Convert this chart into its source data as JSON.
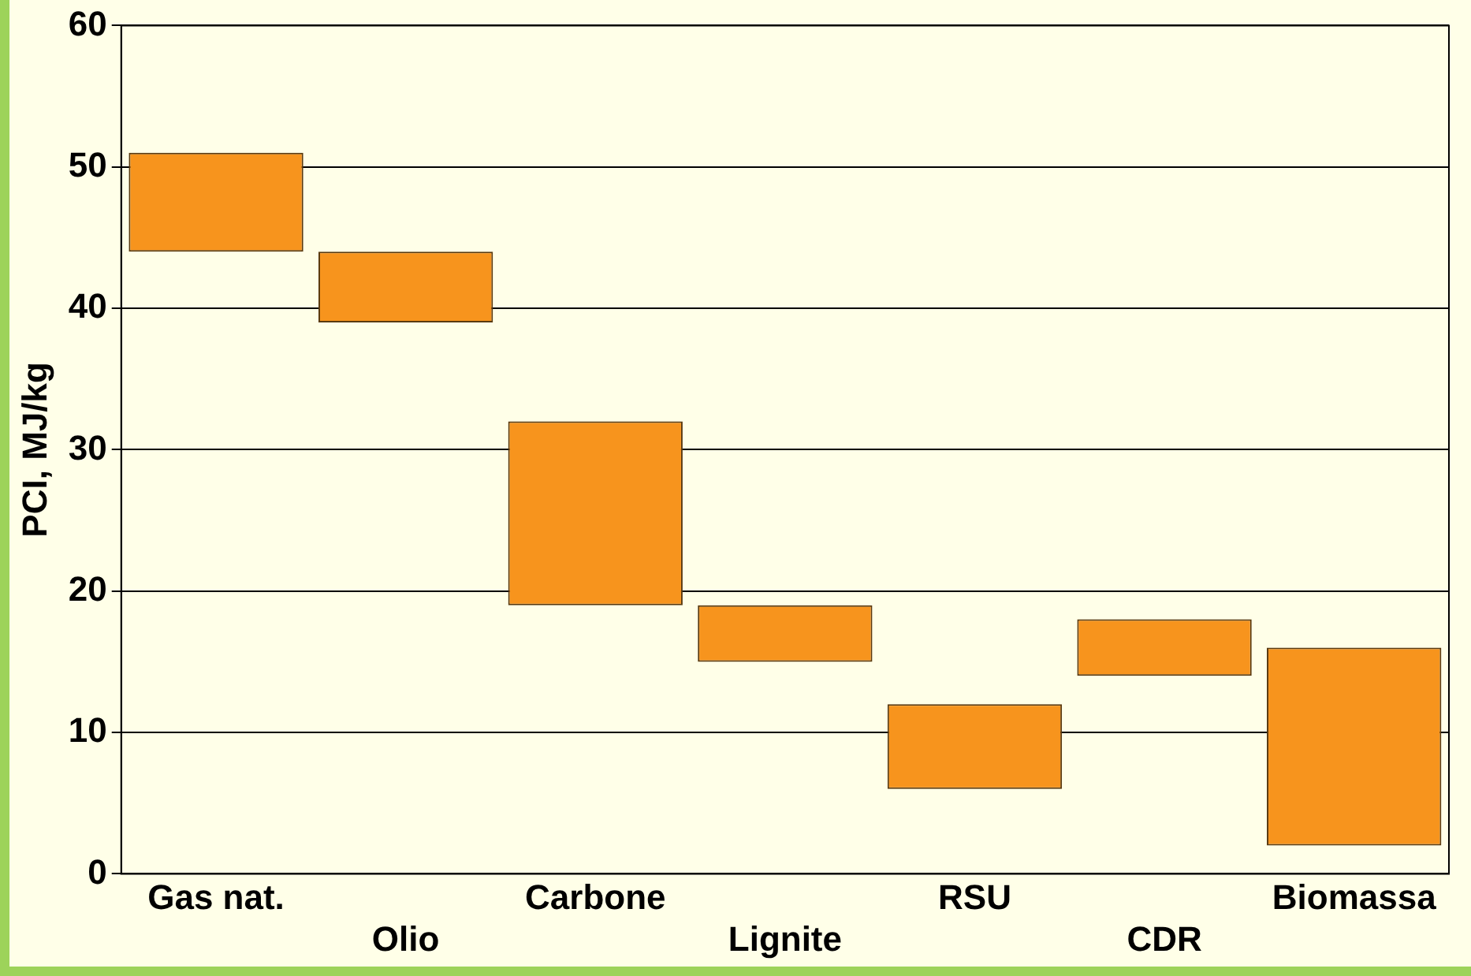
{
  "chart_data": {
    "type": "bar",
    "ylabel": "PCI, MJ/kg",
    "categories": [
      "Gas nat.",
      "Olio",
      "Carbone",
      "Lignite",
      "RSU",
      "CDR",
      "Biomassa"
    ],
    "base": [
      44,
      39,
      19,
      15,
      6,
      14,
      2
    ],
    "values": [
      7,
      5,
      13,
      4,
      6,
      4,
      14
    ],
    "color": "#f7941d",
    "ylim": [
      0,
      60
    ],
    "yticks": [
      0,
      10,
      20,
      30,
      40,
      50,
      60
    ],
    "grid": "y"
  }
}
